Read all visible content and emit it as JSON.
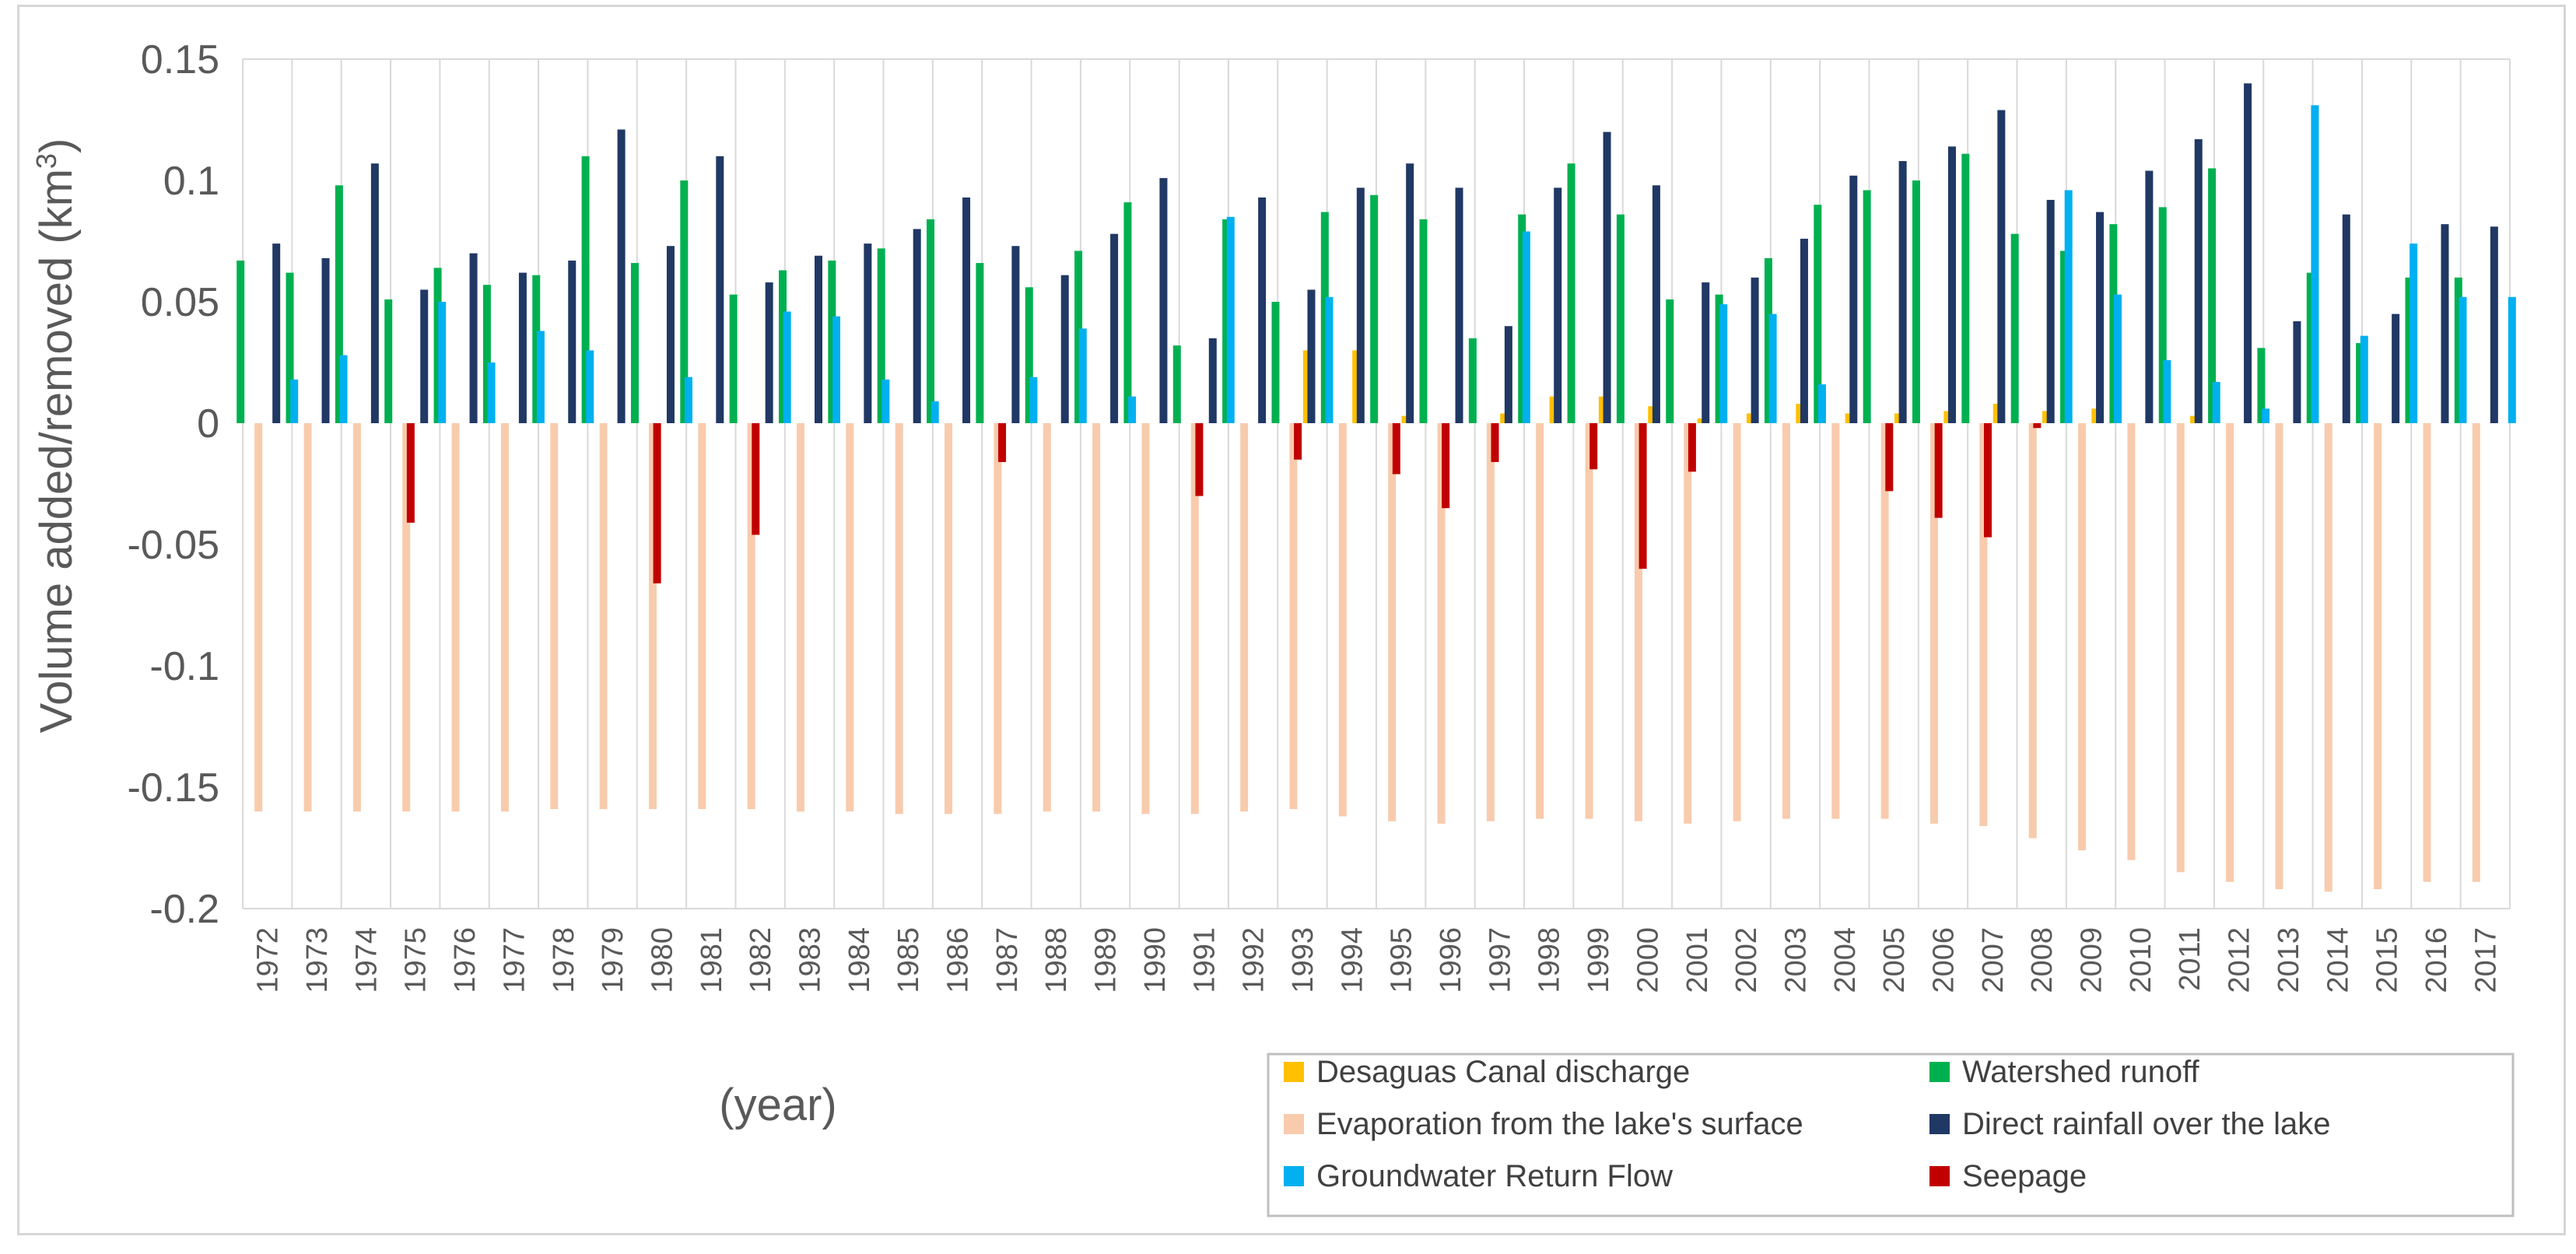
{
  "chart_data": {
    "type": "bar",
    "title": "",
    "ylabel": "Volume added/removed (km",
    "ylabel_superscript": "3",
    "ylabel_close": ")",
    "xlabel": "(year)",
    "ylim": [
      -0.2,
      0.15
    ],
    "yticks": [
      0.15,
      0.1,
      0.05,
      0,
      -0.05,
      -0.1,
      -0.15,
      -0.2
    ],
    "ytick_labels": [
      "0.15",
      "0.1",
      "0.05",
      "0",
      "-0.05",
      "-0.1",
      "-0.15",
      "-0.2"
    ],
    "grid": "vertical",
    "legend_position": "bottom-right",
    "categories": [
      "1972",
      "1973",
      "1974",
      "1975",
      "1976",
      "1977",
      "1978",
      "1979",
      "1980",
      "1981",
      "1982",
      "1983",
      "1984",
      "1985",
      "1986",
      "1987",
      "1988",
      "1989",
      "1990",
      "1991",
      "1992",
      "1993",
      "1994",
      "1995",
      "1996",
      "1997",
      "1998",
      "1999",
      "2000",
      "2001",
      "2002",
      "2003",
      "2004",
      "2005",
      "2006",
      "2007",
      "2008",
      "2009",
      "2010",
      "2011",
      "2012",
      "2013",
      "2014",
      "2015",
      "2016",
      "2017"
    ],
    "series": [
      {
        "name": "Desaguas Canal discharge",
        "color": "#ffc000",
        "values": [
          0,
          0,
          0,
          0,
          0,
          0,
          0,
          0,
          0,
          0,
          0,
          0,
          0,
          0,
          0,
          0,
          0,
          0,
          0,
          0,
          0,
          0,
          0.03,
          0.03,
          0.003,
          0,
          0.004,
          0.011,
          0.011,
          0.007,
          0.002,
          0.004,
          0.008,
          0.004,
          0.004,
          0.005,
          0.008,
          0.005,
          0.006,
          0,
          0.003,
          0,
          0,
          0,
          0,
          0
        ]
      },
      {
        "name": "Watershed runoff",
        "color": "#00b050",
        "values": [
          0.067,
          0.062,
          0.098,
          0.051,
          0.064,
          0.057,
          0.061,
          0.11,
          0.066,
          0.1,
          0.053,
          0.063,
          0.067,
          0.072,
          0.084,
          0.066,
          0.056,
          0.071,
          0.091,
          0.032,
          0.084,
          0.05,
          0.087,
          0.094,
          0.084,
          0.035,
          0.086,
          0.107,
          0.086,
          0.051,
          0.053,
          0.068,
          0.09,
          0.096,
          0.1,
          0.111,
          0.078,
          0.071,
          0.082,
          0.089,
          0.105,
          0.031,
          0.062,
          0.033,
          0.06,
          0.06
        ]
      },
      {
        "name": "Evaporation from the lake's surface",
        "color": "#f8cbad",
        "values": [
          -0.16,
          -0.16,
          -0.16,
          -0.16,
          -0.16,
          -0.16,
          -0.159,
          -0.159,
          -0.159,
          -0.159,
          -0.159,
          -0.16,
          -0.16,
          -0.161,
          -0.161,
          -0.161,
          -0.16,
          -0.16,
          -0.161,
          -0.161,
          -0.16,
          -0.159,
          -0.162,
          -0.164,
          -0.165,
          -0.164,
          -0.163,
          -0.163,
          -0.164,
          -0.165,
          -0.164,
          -0.163,
          -0.163,
          -0.163,
          -0.165,
          -0.166,
          -0.171,
          -0.176,
          -0.18,
          -0.185,
          -0.189,
          -0.192,
          -0.193,
          -0.192,
          -0.189,
          -0.189
        ]
      },
      {
        "name": "Direct rainfall over the lake",
        "color": "#203864",
        "values": [
          0.074,
          0.068,
          0.107,
          0.055,
          0.07,
          0.062,
          0.067,
          0.121,
          0.073,
          0.11,
          0.058,
          0.069,
          0.074,
          0.08,
          0.093,
          0.073,
          0.061,
          0.078,
          0.101,
          0.035,
          0.093,
          0.055,
          0.097,
          0.107,
          0.097,
          0.04,
          0.097,
          0.12,
          0.098,
          0.058,
          0.06,
          0.076,
          0.102,
          0.108,
          0.114,
          0.129,
          0.092,
          0.087,
          0.104,
          0.117,
          0.14,
          0.042,
          0.086,
          0.045,
          0.082,
          0.081
        ]
      },
      {
        "name": "Groundwater Return Flow",
        "color": "#00b0f0",
        "values": [
          0.018,
          0.028,
          0,
          0.05,
          0.025,
          0.038,
          0.03,
          0,
          0.019,
          0,
          0.046,
          0.044,
          0.018,
          0.009,
          0,
          0.019,
          0.039,
          0.011,
          0,
          0.085,
          0,
          0.052,
          0,
          0,
          0,
          0.079,
          0,
          0,
          0,
          0.049,
          0.045,
          0.016,
          0,
          0,
          0,
          0,
          0.096,
          0.053,
          0.026,
          0.017,
          0.006,
          0.131,
          0.036,
          0.074,
          0.052,
          0.052
        ]
      },
      {
        "name": "Seepage",
        "color": "#c00000",
        "values": [
          0,
          0,
          -0.041,
          0,
          0,
          0,
          0,
          -0.066,
          0,
          -0.046,
          0,
          0,
          0,
          0,
          -0.016,
          0,
          0,
          0,
          -0.03,
          0,
          -0.015,
          0,
          -0.021,
          -0.035,
          -0.016,
          0,
          -0.019,
          -0.06,
          -0.02,
          0,
          0,
          0,
          -0.028,
          -0.039,
          -0.047,
          -0.002,
          0,
          0,
          0,
          0,
          0,
          0,
          0,
          0,
          0,
          0
        ]
      }
    ]
  }
}
